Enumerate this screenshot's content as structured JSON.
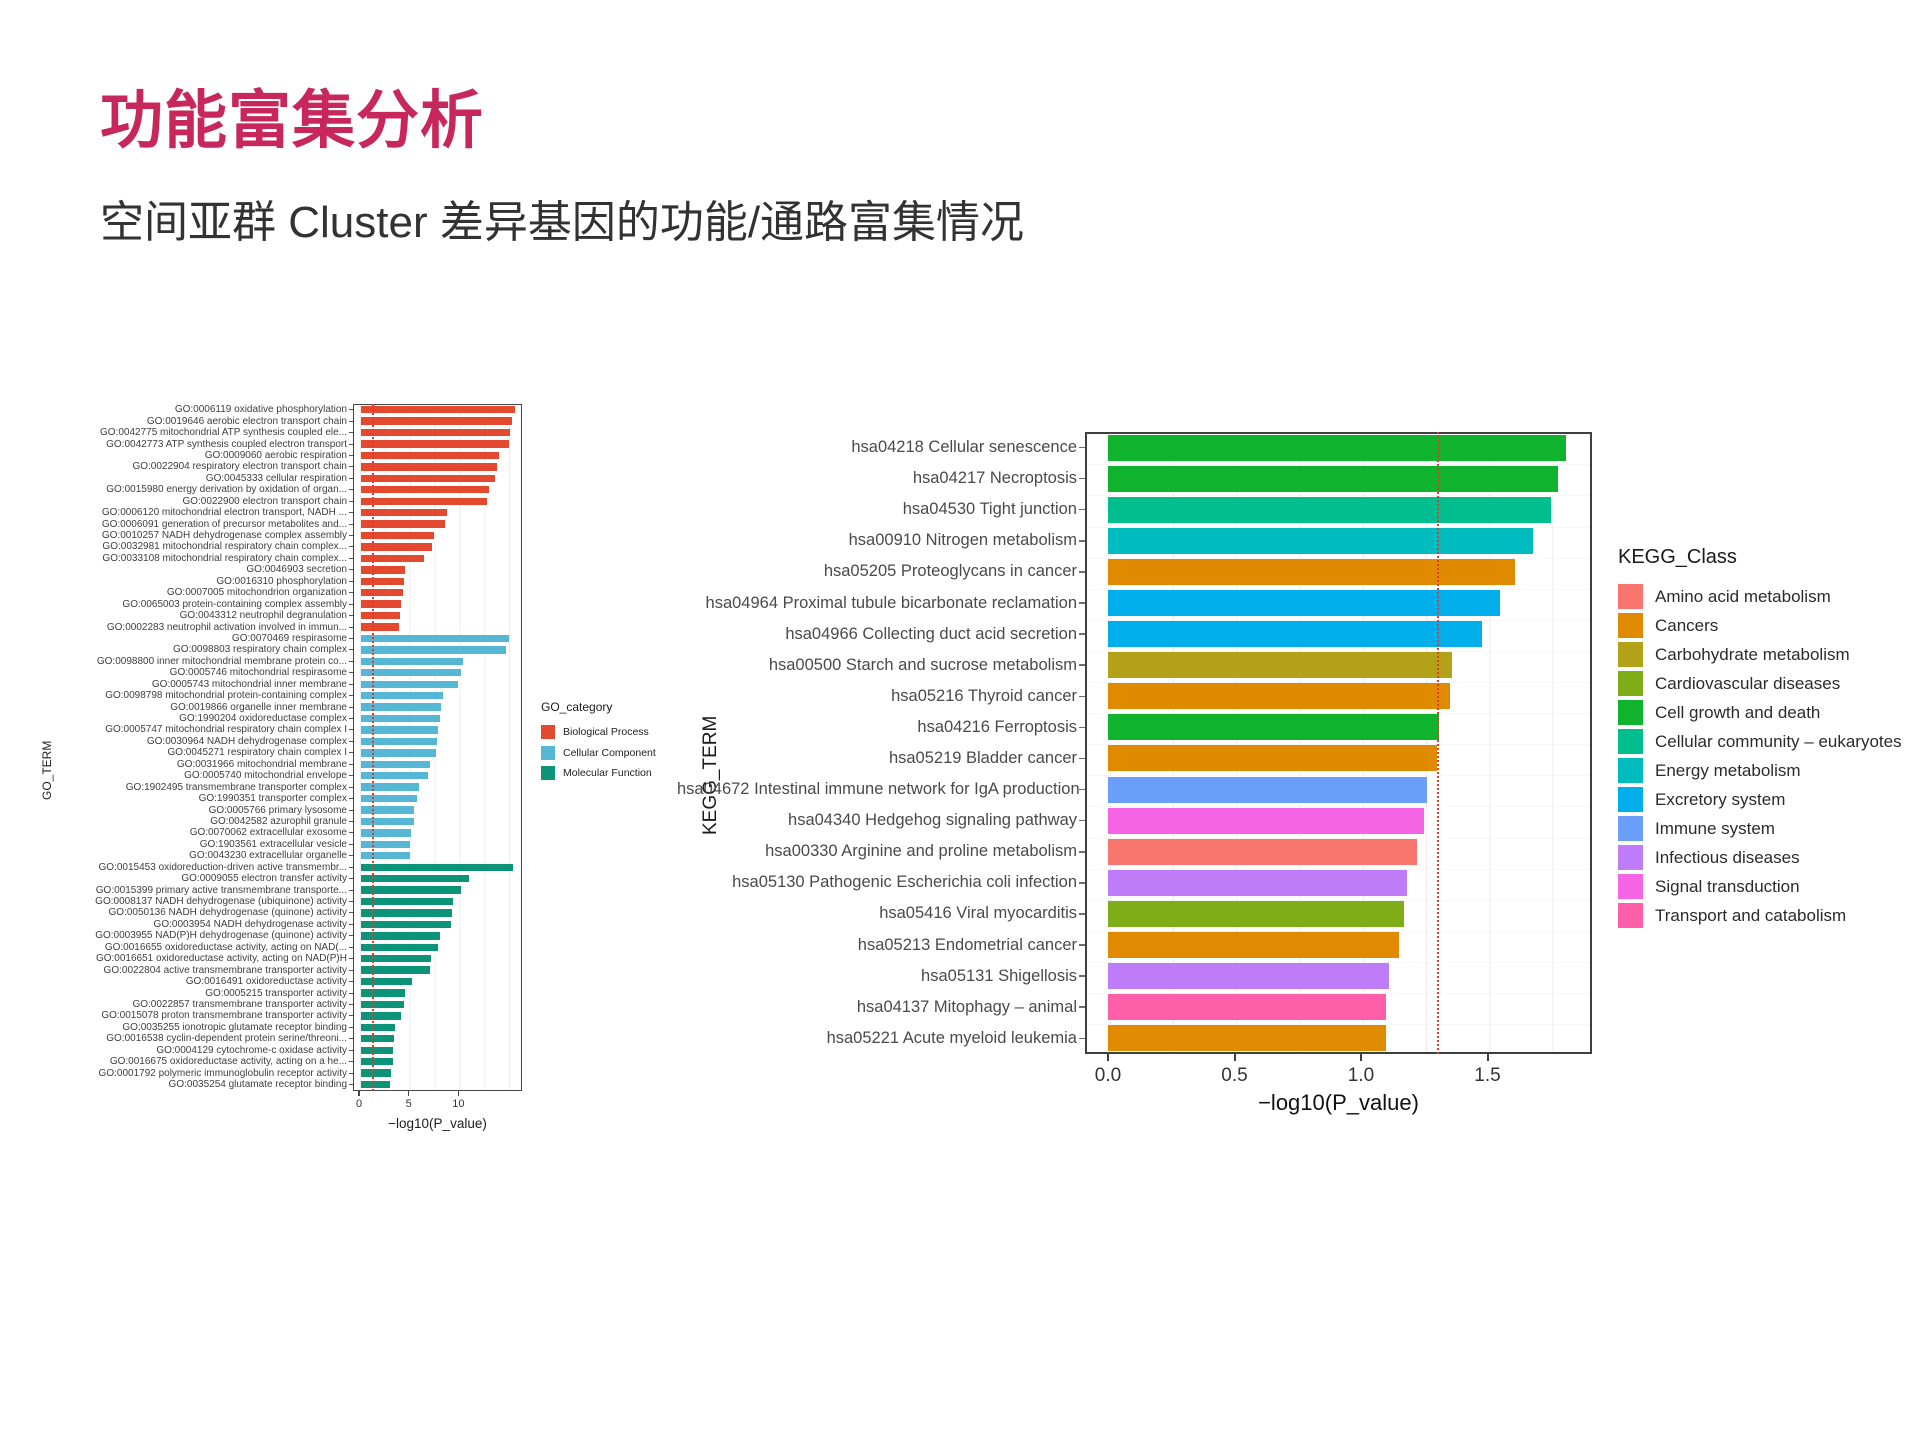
{
  "slide": {
    "title": "功能富集分析",
    "subtitle": "空间亚群 Cluster 差异基因的功能/通路富集情况",
    "accent_color": "#C8275B"
  },
  "chart_data": [
    {
      "id": "go_enrichment",
      "type": "bar",
      "orientation": "horizontal",
      "title": "",
      "xlabel": "−log10(P_value)",
      "ylabel": "GO_TERM",
      "xlim": [
        0,
        16.4
      ],
      "xticks": [
        {
          "v": 0,
          "label": "0"
        },
        {
          "v": 5,
          "label": "5"
        },
        {
          "v": 10,
          "label": "10"
        }
      ],
      "grid": true,
      "threshold_line": {
        "value": 1.3,
        "color": "#E8372C",
        "style": "dotted"
      },
      "legend_title": "GO_category",
      "legend_position": "right",
      "legend": [
        {
          "name": "Biological Process",
          "color": "#E2492F"
        },
        {
          "name": "Cellular Component",
          "color": "#55B7D4"
        },
        {
          "name": "Molecular Function",
          "color": "#0D9478"
        }
      ],
      "bars": [
        {
          "label": "GO:0006119 oxidative phosphorylation",
          "value": 15.5,
          "category": "Biological Process"
        },
        {
          "label": "GO:0019646 aerobic electron transport chain",
          "value": 15.2,
          "category": "Biological Process"
        },
        {
          "label": "GO:0042775 mitochondrial ATP synthesis coupled ele...",
          "value": 15.0,
          "category": "Biological Process"
        },
        {
          "label": "GO:0042773 ATP synthesis coupled electron transport",
          "value": 14.9,
          "category": "Biological Process"
        },
        {
          "label": "GO:0009060 aerobic respiration",
          "value": 13.9,
          "category": "Biological Process"
        },
        {
          "label": "GO:0022904 respiratory electron transport chain",
          "value": 13.7,
          "category": "Biological Process"
        },
        {
          "label": "GO:0045333 cellular respiration",
          "value": 13.5,
          "category": "Biological Process"
        },
        {
          "label": "GO:0015980 energy derivation by oxidation of organ...",
          "value": 12.9,
          "category": "Biological Process"
        },
        {
          "label": "GO:0022900 electron transport chain",
          "value": 12.7,
          "category": "Biological Process"
        },
        {
          "label": "GO:0006120 mitochondrial electron transport, NADH ...",
          "value": 8.6,
          "category": "Biological Process"
        },
        {
          "label": "GO:0006091 generation of precursor metabolites and...",
          "value": 8.4,
          "category": "Biological Process"
        },
        {
          "label": "GO:0010257 NADH dehydrogenase complex assembly",
          "value": 7.3,
          "category": "Biological Process"
        },
        {
          "label": "GO:0032981 mitochondrial respiratory chain complex...",
          "value": 7.1,
          "category": "Biological Process"
        },
        {
          "label": "GO:0033108 mitochondrial respiratory chain complex...",
          "value": 6.3,
          "category": "Biological Process"
        },
        {
          "label": "GO:0046903 secretion",
          "value": 4.4,
          "category": "Biological Process"
        },
        {
          "label": "GO:0016310 phosphorylation",
          "value": 4.3,
          "category": "Biological Process"
        },
        {
          "label": "GO:0007005 mitochondrion organization",
          "value": 4.2,
          "category": "Biological Process"
        },
        {
          "label": "GO:0065003 protein-containing complex assembly",
          "value": 4.0,
          "category": "Biological Process"
        },
        {
          "label": "GO:0043312 neutrophil degranulation",
          "value": 3.9,
          "category": "Biological Process"
        },
        {
          "label": "GO:0002283 neutrophil activation involved in immun...",
          "value": 3.8,
          "category": "Biological Process"
        },
        {
          "label": "GO:0070469 respirasome",
          "value": 14.9,
          "category": "Cellular Component"
        },
        {
          "label": "GO:0098803 respiratory chain complex",
          "value": 14.6,
          "category": "Cellular Component"
        },
        {
          "label": "GO:0098800 inner mitochondrial membrane protein co...",
          "value": 10.3,
          "category": "Cellular Component"
        },
        {
          "label": "GO:0005746 mitochondrial respirasome",
          "value": 10.1,
          "category": "Cellular Component"
        },
        {
          "label": "GO:0005743 mitochondrial inner membrane",
          "value": 9.8,
          "category": "Cellular Component"
        },
        {
          "label": "GO:0098798 mitochondrial protein-containing complex",
          "value": 8.2,
          "category": "Cellular Component"
        },
        {
          "label": "GO:0019866 organelle inner membrane",
          "value": 8.0,
          "category": "Cellular Component"
        },
        {
          "label": "GO:1990204 oxidoreductase complex",
          "value": 7.9,
          "category": "Cellular Component"
        },
        {
          "label": "GO:0005747 mitochondrial respiratory chain complex I",
          "value": 7.7,
          "category": "Cellular Component"
        },
        {
          "label": "GO:0030964 NADH dehydrogenase complex",
          "value": 7.6,
          "category": "Cellular Component"
        },
        {
          "label": "GO:0045271 respiratory chain complex I",
          "value": 7.5,
          "category": "Cellular Component"
        },
        {
          "label": "GO:0031966 mitochondrial membrane",
          "value": 6.9,
          "category": "Cellular Component"
        },
        {
          "label": "GO:0005740 mitochondrial envelope",
          "value": 6.7,
          "category": "Cellular Component"
        },
        {
          "label": "GO:1902495 transmembrane transporter complex",
          "value": 5.8,
          "category": "Cellular Component"
        },
        {
          "label": "GO:1990351 transporter complex",
          "value": 5.6,
          "category": "Cellular Component"
        },
        {
          "label": "GO:0005766 primary lysosome",
          "value": 5.3,
          "category": "Cellular Component"
        },
        {
          "label": "GO:0042582 azurophil granule",
          "value": 5.3,
          "category": "Cellular Component"
        },
        {
          "label": "GO:0070062 extracellular exosome",
          "value": 5.0,
          "category": "Cellular Component"
        },
        {
          "label": "GO:1903561 extracellular vesicle",
          "value": 4.9,
          "category": "Cellular Component"
        },
        {
          "label": "GO:0043230 extracellular organelle",
          "value": 4.9,
          "category": "Cellular Component"
        },
        {
          "label": "GO:0015453 oxidoreduction-driven active transmembr...",
          "value": 15.3,
          "category": "Molecular Function"
        },
        {
          "label": "GO:0009055 electron transfer activity",
          "value": 10.9,
          "category": "Molecular Function"
        },
        {
          "label": "GO:0015399 primary active transmembrane transporte...",
          "value": 10.1,
          "category": "Molecular Function"
        },
        {
          "label": "GO:0008137 NADH dehydrogenase (ubiquinone) activity",
          "value": 9.3,
          "category": "Molecular Function"
        },
        {
          "label": "GO:0050136 NADH dehydrogenase (quinone) activity",
          "value": 9.2,
          "category": "Molecular Function"
        },
        {
          "label": "GO:0003954 NADH dehydrogenase activity",
          "value": 9.0,
          "category": "Molecular Function"
        },
        {
          "label": "GO:0003955 NAD(P)H dehydrogenase (quinone) activity",
          "value": 7.9,
          "category": "Molecular Function"
        },
        {
          "label": "GO:0016655 oxidoreductase activity, acting on NAD(...",
          "value": 7.7,
          "category": "Molecular Function"
        },
        {
          "label": "GO:0016651 oxidoreductase activity, acting on NAD(P)H",
          "value": 7.0,
          "category": "Molecular Function"
        },
        {
          "label": "GO:0022804 active transmembrane transporter activity",
          "value": 6.9,
          "category": "Molecular Function"
        },
        {
          "label": "GO:0016491 oxidoreductase activity",
          "value": 5.1,
          "category": "Molecular Function"
        },
        {
          "label": "GO:0005215 transporter activity",
          "value": 4.4,
          "category": "Molecular Function"
        },
        {
          "label": "GO:0022857 transmembrane transporter activity",
          "value": 4.3,
          "category": "Molecular Function"
        },
        {
          "label": "GO:0015078 proton transmembrane transporter activity",
          "value": 4.0,
          "category": "Molecular Function"
        },
        {
          "label": "GO:0035255 ionotropic glutamate receptor binding",
          "value": 3.4,
          "category": "Molecular Function"
        },
        {
          "label": "GO:0016538 cyclin-dependent protein serine/threoni...",
          "value": 3.3,
          "category": "Molecular Function"
        },
        {
          "label": "GO:0004129 cytochrome-c oxidase activity",
          "value": 3.2,
          "category": "Molecular Function"
        },
        {
          "label": "GO:0016675 oxidoreductase activity, acting on a he...",
          "value": 3.2,
          "category": "Molecular Function"
        },
        {
          "label": "GO:0001792 polymeric immunoglobulin receptor activity",
          "value": 3.0,
          "category": "Molecular Function"
        },
        {
          "label": "GO:0035254 glutamate receptor binding",
          "value": 2.9,
          "category": "Molecular Function"
        }
      ]
    },
    {
      "id": "kegg_enrichment",
      "type": "bar",
      "orientation": "horizontal",
      "title": "",
      "xlabel": "−log10(P_value)",
      "ylabel": "KEGG_TERM",
      "xlim": [
        0,
        1.9
      ],
      "xticks": [
        {
          "v": 0,
          "label": "0.0"
        },
        {
          "v": 0.5,
          "label": "0.5"
        },
        {
          "v": 1.0,
          "label": "1.0"
        },
        {
          "v": 1.5,
          "label": "1.5"
        }
      ],
      "grid": true,
      "threshold_line": {
        "value": 1.3,
        "color": "#E8372C",
        "style": "dotted"
      },
      "legend_title": "KEGG_Class",
      "legend_position": "right",
      "legend": [
        {
          "name": "Amino acid metabolism",
          "color": "#F8766D"
        },
        {
          "name": "Cancers",
          "color": "#E08A00"
        },
        {
          "name": "Carbohydrate metabolism",
          "color": "#B3A118"
        },
        {
          "name": "Cardiovascular diseases",
          "color": "#7FAD17"
        },
        {
          "name": "Cell growth and death",
          "color": "#0FB32D"
        },
        {
          "name": "Cellular community – eukaryotes",
          "color": "#00BE8D"
        },
        {
          "name": "Energy metabolism",
          "color": "#00BCBE"
        },
        {
          "name": "Excretory system",
          "color": "#00AEEC"
        },
        {
          "name": "Immune system",
          "color": "#6B9EF8"
        },
        {
          "name": "Infectious diseases",
          "color": "#BE7CF8"
        },
        {
          "name": "Signal transduction",
          "color": "#F564E4"
        },
        {
          "name": "Transport and catabolism",
          "color": "#FF5FA9"
        }
      ],
      "bars": [
        {
          "label": "hsa04218 Cellular senescence",
          "value": 1.81,
          "category": "Cell growth and death"
        },
        {
          "label": "hsa04217 Necroptosis",
          "value": 1.78,
          "category": "Cell growth and death"
        },
        {
          "label": "hsa04530 Tight junction",
          "value": 1.75,
          "category": "Cellular community – eukaryotes"
        },
        {
          "label": "hsa00910 Nitrogen metabolism",
          "value": 1.68,
          "category": "Energy metabolism"
        },
        {
          "label": "hsa05205 Proteoglycans in cancer",
          "value": 1.61,
          "category": "Cancers"
        },
        {
          "label": "hsa04964 Proximal tubule bicarbonate reclamation",
          "value": 1.55,
          "category": "Excretory system"
        },
        {
          "label": "hsa04966 Collecting duct acid secretion",
          "value": 1.48,
          "category": "Excretory system"
        },
        {
          "label": "hsa00500 Starch and sucrose metabolism",
          "value": 1.36,
          "category": "Carbohydrate metabolism"
        },
        {
          "label": "hsa05216 Thyroid cancer",
          "value": 1.35,
          "category": "Cancers"
        },
        {
          "label": "hsa04216 Ferroptosis",
          "value": 1.31,
          "category": "Cell growth and death"
        },
        {
          "label": "hsa05219 Bladder cancer",
          "value": 1.3,
          "category": "Cancers"
        },
        {
          "label": "hsa04672 Intestinal immune network for IgA production",
          "value": 1.26,
          "category": "Immune system"
        },
        {
          "label": "hsa04340 Hedgehog signaling pathway",
          "value": 1.25,
          "category": "Signal transduction"
        },
        {
          "label": "hsa00330 Arginine and proline metabolism",
          "value": 1.22,
          "category": "Amino acid metabolism"
        },
        {
          "label": "hsa05130 Pathogenic Escherichia coli infection",
          "value": 1.18,
          "category": "Infectious diseases"
        },
        {
          "label": "hsa05416 Viral myocarditis",
          "value": 1.17,
          "category": "Cardiovascular diseases"
        },
        {
          "label": "hsa05213 Endometrial cancer",
          "value": 1.15,
          "category": "Cancers"
        },
        {
          "label": "hsa05131 Shigellosis",
          "value": 1.11,
          "category": "Infectious diseases"
        },
        {
          "label": "hsa04137 Mitophagy – animal",
          "value": 1.1,
          "category": "Transport and catabolism"
        },
        {
          "label": "hsa05221 Acute myeloid leukemia",
          "value": 1.1,
          "category": "Cancers"
        }
      ]
    }
  ]
}
